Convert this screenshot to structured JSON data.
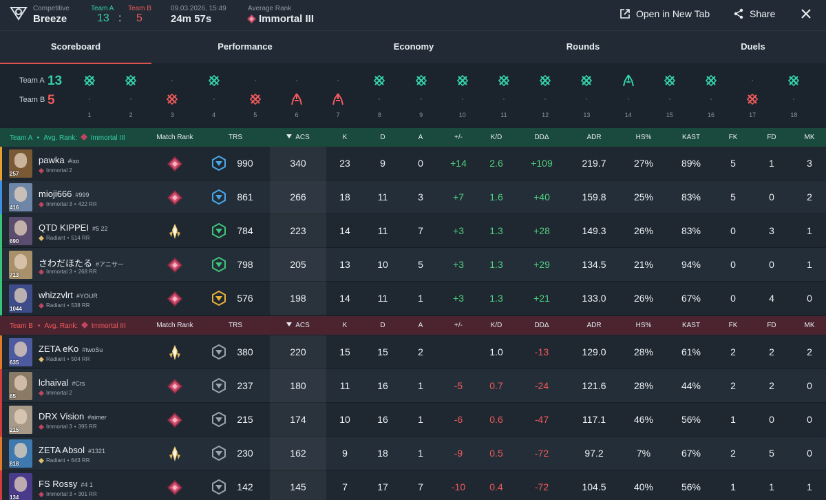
{
  "header": {
    "mode": "Competitive",
    "map": "Breeze",
    "team_a_label": "Team A",
    "team_b_label": "Team B",
    "score_a": "13",
    "score_b": "5",
    "score_sep": ":",
    "date": "09.03.2026, 15:49",
    "duration": "24m 57s",
    "avg_rank_label": "Average Rank",
    "avg_rank": "Immortal III",
    "open_new_tab": "Open in New Tab",
    "share": "Share"
  },
  "tabs": [
    {
      "label": "Scoreboard",
      "active": true
    },
    {
      "label": "Performance",
      "active": false
    },
    {
      "label": "Economy",
      "active": false
    },
    {
      "label": "Rounds",
      "active": false
    },
    {
      "label": "Duels",
      "active": false
    }
  ],
  "rounds": {
    "team_a_label": "Team A",
    "team_a_score": "13",
    "team_b_label": "Team B",
    "team_b_score": "5",
    "list": [
      {
        "n": "1",
        "winner": "A",
        "type": "elim"
      },
      {
        "n": "2",
        "winner": "A",
        "type": "elim"
      },
      {
        "n": "3",
        "winner": "B",
        "type": "elim"
      },
      {
        "n": "4",
        "winner": "A",
        "type": "elim"
      },
      {
        "n": "5",
        "winner": "B",
        "type": "elim"
      },
      {
        "n": "6",
        "winner": "B",
        "type": "spike"
      },
      {
        "n": "7",
        "winner": "B",
        "type": "spike"
      },
      {
        "n": "8",
        "winner": "A",
        "type": "elim"
      },
      {
        "n": "9",
        "winner": "A",
        "type": "elim"
      },
      {
        "n": "10",
        "winner": "A",
        "type": "elim"
      },
      {
        "n": "11",
        "winner": "A",
        "type": "elim"
      },
      {
        "n": "12",
        "winner": "A",
        "type": "elim"
      },
      {
        "n": "13",
        "winner": "A",
        "type": "elim"
      },
      {
        "n": "14",
        "winner": "A",
        "type": "spike"
      },
      {
        "n": "15",
        "winner": "A",
        "type": "elim"
      },
      {
        "n": "16",
        "winner": "A",
        "type": "elim"
      },
      {
        "n": "17",
        "winner": "B",
        "type": "elim"
      },
      {
        "n": "18",
        "winner": "A",
        "type": "elim"
      }
    ]
  },
  "table": {
    "columns": [
      "Match Rank",
      "TRS",
      "ACS",
      "K",
      "D",
      "A",
      "+/-",
      "K/D",
      "DDΔ",
      "ADR",
      "HS%",
      "KAST",
      "FK",
      "FD",
      "MK"
    ]
  },
  "team_a": {
    "label": "Team A",
    "sep": "•",
    "avg_label": "Avg. Rank:",
    "avg_rank": "Immortal III",
    "players": [
      {
        "name": "pawka",
        "tag": "#ixo",
        "rank": "Immortal 2",
        "rr": "",
        "level": "257",
        "trs": "990",
        "acs": "340",
        "k": "23",
        "d": "9",
        "a": "0",
        "pm": "+14",
        "kd": "2.6",
        "dd": "+109",
        "adr": "219.7",
        "hs": "27%",
        "kast": "89%",
        "fk": "5",
        "fd": "1",
        "mk": "3",
        "bar": "#e5a12e",
        "avatar": "#7a5a35",
        "mr": "immortal",
        "trsc": "#4aa8e8"
      },
      {
        "name": "mioji666",
        "tag": "#999",
        "rank": "Immortal 3",
        "rr": "422 RR",
        "level": "416",
        "trs": "861",
        "acs": "266",
        "k": "18",
        "d": "11",
        "a": "3",
        "pm": "+7",
        "kd": "1.6",
        "dd": "+40",
        "adr": "159.8",
        "hs": "25%",
        "kast": "83%",
        "fk": "5",
        "fd": "0",
        "mk": "2",
        "bar": "#3f8fe0",
        "avatar": "#6e87a8",
        "mr": "immortal",
        "trsc": "#4aa8e8"
      },
      {
        "name": "QTD KIPPEI",
        "tag": "#5 22",
        "rank": "Radiant",
        "rr": "514 RR",
        "level": "690",
        "trs": "784",
        "acs": "223",
        "k": "14",
        "d": "11",
        "a": "7",
        "pm": "+3",
        "kd": "1.3",
        "dd": "+28",
        "adr": "149.3",
        "hs": "26%",
        "kast": "83%",
        "fk": "0",
        "fd": "3",
        "mk": "1",
        "bar": "#37c47a",
        "avatar": "#5a4d6e",
        "mr": "radiant",
        "trsc": "#3fc47a"
      },
      {
        "name": "さわだほたる",
        "tag": "#アニサー",
        "rank": "Immortal 3",
        "rr": "268 RR",
        "level": "713",
        "trs": "798",
        "acs": "205",
        "k": "13",
        "d": "10",
        "a": "5",
        "pm": "+3",
        "kd": "1.3",
        "dd": "+29",
        "adr": "134.5",
        "hs": "21%",
        "kast": "94%",
        "fk": "0",
        "fd": "0",
        "mk": "1",
        "bar": "#37c47a",
        "avatar": "#a8906a",
        "mr": "immortal",
        "trsc": "#3fc47a"
      },
      {
        "name": "whizzvlrt",
        "tag": "#YOUR",
        "rank": "Radiant",
        "rr": "538 RR",
        "level": "1044",
        "trs": "576",
        "acs": "198",
        "k": "14",
        "d": "11",
        "a": "1",
        "pm": "+3",
        "kd": "1.3",
        "dd": "+21",
        "adr": "133.0",
        "hs": "26%",
        "kast": "67%",
        "fk": "0",
        "fd": "4",
        "mk": "0",
        "bar": "#37c47a",
        "avatar": "#3e4c8a",
        "mr": "immortal",
        "trsc": "#e8b23a"
      }
    ]
  },
  "team_b": {
    "label": "Team B",
    "sep": "•",
    "avg_label": "Avg. Rank:",
    "avg_rank": "Immortal III",
    "players": [
      {
        "name": "ZETA eKo",
        "tag": "#twoSu",
        "rank": "Radiant",
        "rr": "504 RR",
        "level": "635",
        "trs": "380",
        "acs": "220",
        "k": "15",
        "d": "15",
        "a": "2",
        "pm": "",
        "kd": "1.0",
        "dd": "-13",
        "adr": "129.0",
        "hs": "28%",
        "kast": "61%",
        "fk": "2",
        "fd": "2",
        "mk": "2",
        "bar": "#e07a2a",
        "avatar": "#4d5aa0",
        "mr": "radiant",
        "trsc": "#9aa5b0"
      },
      {
        "name": "lchaival",
        "tag": "#Crs",
        "rank": "Immortal 2",
        "rr": "",
        "level": "65",
        "trs": "237",
        "acs": "180",
        "k": "11",
        "d": "16",
        "a": "1",
        "pm": "-5",
        "kd": "0.7",
        "dd": "-24",
        "adr": "121.6",
        "hs": "28%",
        "kast": "44%",
        "fk": "2",
        "fd": "2",
        "mk": "0",
        "bar": "#d23c3c",
        "avatar": "#8a7a66",
        "mr": "immortal",
        "trsc": "#9aa5b0"
      },
      {
        "name": "DRX Vision",
        "tag": "#aimer",
        "rank": "Immortal 3",
        "rr": "395 RR",
        "level": "215",
        "trs": "215",
        "acs": "174",
        "k": "10",
        "d": "16",
        "a": "1",
        "pm": "-6",
        "kd": "0.6",
        "dd": "-47",
        "adr": "117.1",
        "hs": "46%",
        "kast": "56%",
        "fk": "1",
        "fd": "0",
        "mk": "0",
        "bar": "#d23c3c",
        "avatar": "#a89a88",
        "mr": "immortal",
        "trsc": "#9aa5b0"
      },
      {
        "name": "ZETA Absol",
        "tag": "#1321",
        "rank": "Radiant",
        "rr": "643 RR",
        "level": "818",
        "trs": "230",
        "acs": "162",
        "k": "9",
        "d": "18",
        "a": "1",
        "pm": "-9",
        "kd": "0.5",
        "dd": "-72",
        "adr": "97.2",
        "hs": "7%",
        "kast": "67%",
        "fk": "2",
        "fd": "5",
        "mk": "0",
        "bar": "#e07a2a",
        "avatar": "#3e7ab0",
        "mr": "radiant",
        "trsc": "#9aa5b0"
      },
      {
        "name": "FS Rossy",
        "tag": "#4 1",
        "rank": "Immortal 3",
        "rr": "301 RR",
        "level": "134",
        "trs": "142",
        "acs": "145",
        "k": "7",
        "d": "17",
        "a": "7",
        "pm": "-10",
        "kd": "0.4",
        "dd": "-72",
        "adr": "104.5",
        "hs": "40%",
        "kast": "56%",
        "fk": "1",
        "fd": "1",
        "mk": "1",
        "bar": "#d23c3c",
        "avatar": "#4a3a8a",
        "mr": "immortal",
        "trsc": "#9aa5b0"
      }
    ]
  },
  "colors": {
    "team_a": "#35d0a6",
    "team_b": "#f25b5b",
    "accent": "#e05050",
    "positive": "#4fd07e",
    "negative": "#f05a5a"
  },
  "icons": {
    "logo": "tracker-logo-icon",
    "open": "open-new-tab-icon",
    "share": "share-icon",
    "close": "close-icon",
    "sort": "sort-desc-icon"
  }
}
